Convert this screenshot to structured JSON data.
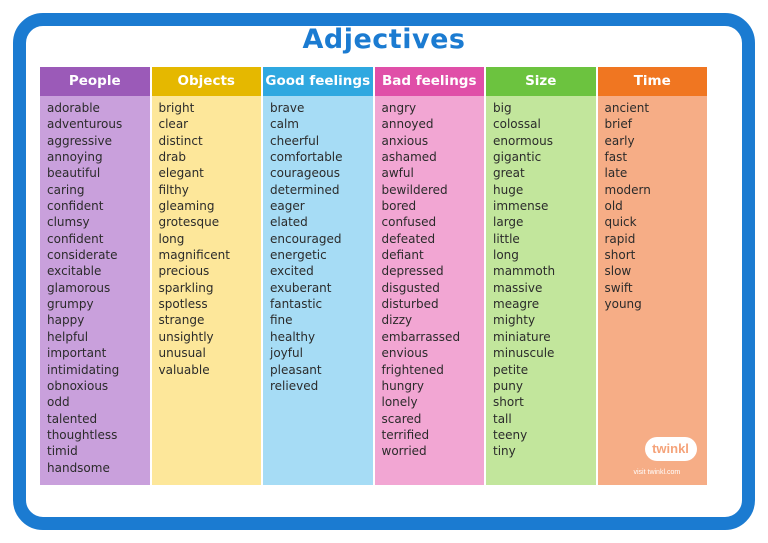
{
  "title": "Adjectives",
  "columns": [
    {
      "heading": "People",
      "head_color": "#9b5ab8",
      "body_color": "#c9a0dc",
      "words": [
        "adorable",
        "adventurous",
        "aggressive",
        "annoying",
        "beautiful",
        "caring",
        "confident",
        "clumsy",
        "confident",
        "considerate",
        "excitable",
        "glamorous",
        "grumpy",
        "happy",
        "helpful",
        "important",
        "intimidating",
        "obnoxious",
        "odd",
        "talented",
        "thoughtless",
        "timid",
        "handsome"
      ]
    },
    {
      "heading": "Objects",
      "head_color": "#e5b800",
      "body_color": "#fde79a",
      "words": [
        "bright",
        "clear",
        "distinct",
        "drab",
        "elegant",
        "filthy",
        "gleaming",
        "grotesque",
        "long",
        "magnificent",
        "precious",
        "sparkling",
        "spotless",
        "strange",
        "unsightly",
        "unusual",
        "valuable"
      ]
    },
    {
      "heading": "Good feelings",
      "head_color": "#2fa8e0",
      "body_color": "#a6dcf5",
      "words": [
        "brave",
        "calm",
        "cheerful",
        "comfortable",
        "courageous",
        "determined",
        "eager",
        "elated",
        "encouraged",
        "energetic",
        "excited",
        "exuberant",
        "fantastic",
        "fine",
        "healthy",
        "joyful",
        "pleasant",
        "relieved"
      ]
    },
    {
      "heading": "Bad feelings",
      "head_color": "#e04fa8",
      "body_color": "#f2a6d3",
      "words": [
        "angry",
        "annoyed",
        "anxious",
        "ashamed",
        "awful",
        "bewildered",
        "bored",
        "confused",
        "defeated",
        "defiant",
        "depressed",
        "disgusted",
        "disturbed",
        "dizzy",
        "embarrassed",
        "envious",
        "frightened",
        "hungry",
        "lonely",
        "scared",
        "terrified",
        "worried"
      ]
    },
    {
      "heading": "Size",
      "head_color": "#6cc33f",
      "body_color": "#c2e69c",
      "words": [
        "big",
        "colossal",
        "enormous",
        "gigantic",
        "great",
        "huge",
        "immense",
        "large",
        "little",
        "long",
        "mammoth",
        "massive",
        "meagre",
        "mighty",
        "miniature",
        "minuscule",
        "petite",
        "puny",
        "short",
        "tall",
        "teeny",
        "tiny"
      ]
    },
    {
      "heading": "Time",
      "head_color": "#f07621",
      "body_color": "#f6ad86",
      "words": [
        "ancient",
        "brief",
        "early",
        "fast",
        "late",
        "modern",
        "old",
        "quick",
        "rapid",
        "short",
        "slow",
        "swift",
        "young"
      ]
    }
  ],
  "logo": {
    "text": "twinkl",
    "url_text": "visit twinkl.com"
  }
}
